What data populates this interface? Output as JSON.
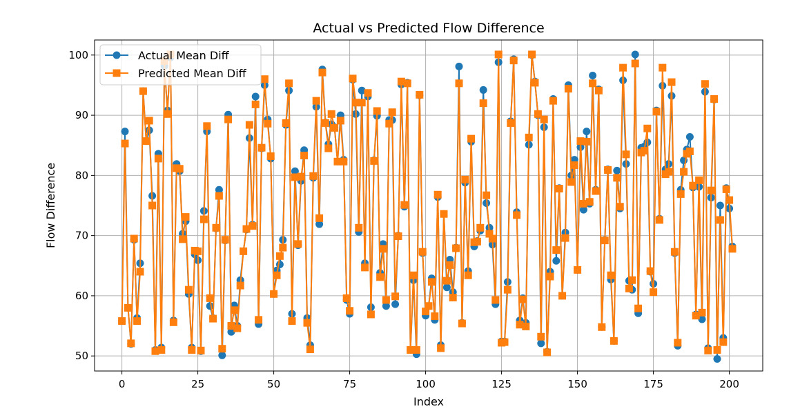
{
  "chart_data": {
    "type": "line",
    "title": "Actual vs Predicted Flow Difference",
    "xlabel": "Index",
    "ylabel": "Flow Difference",
    "xlim": [
      -9,
      211
    ],
    "ylim": [
      47.5,
      102.5
    ],
    "xticks": [
      0,
      25,
      50,
      75,
      100,
      125,
      150,
      175,
      200
    ],
    "yticks": [
      50,
      60,
      70,
      80,
      90,
      100
    ],
    "grid": true,
    "legend_position": "top-left",
    "series": [
      {
        "name": "Actual Mean Diff",
        "color": "#1f77b4",
        "marker": "circle",
        "values": [
          55.8,
          87.3,
          58.0,
          52.0,
          69.3,
          56.3,
          65.4,
          94.0,
          85.7,
          87.5,
          76.6,
          51.0,
          83.6,
          51.4,
          98.2,
          90.8,
          99.6,
          55.9,
          81.9,
          80.7,
          70.3,
          72.4,
          60.3,
          51.4,
          66.9,
          65.9,
          50.8,
          74.1,
          87.3,
          58.3,
          56.3,
          71.2,
          77.6,
          50.1,
          69.2,
          90.1,
          54.0,
          58.4,
          55.0,
          62.6,
          67.4,
          71.0,
          86.2,
          71.8,
          93.1,
          55.3,
          84.5,
          95.0,
          89.3,
          82.8,
          60.3,
          64.2,
          65.2,
          69.3,
          88.4,
          94.1,
          57.0,
          80.7,
          68.4,
          79.1,
          84.2,
          56.3,
          51.8,
          79.6,
          91.4,
          71.9,
          97.6,
          88.8,
          85.2,
          88.5,
          88.0,
          82.3,
          90.0,
          82.6,
          59.3,
          57.0,
          95.9,
          90.2,
          70.6,
          94.1,
          65.4,
          93.1,
          58.1,
          82.5,
          89.9,
          63.8,
          68.6,
          58.3,
          89.2,
          89.2,
          58.6,
          70.0,
          95.1,
          74.8,
          95.4,
          51.0,
          62.6,
          50.3,
          93.3,
          67.1,
          56.7,
          58.3,
          62.9,
          56.0,
          76.4,
          51.8,
          73.6,
          61.4,
          66.0,
          60.6,
          68.0,
          98.1,
          55.5,
          78.8,
          64.1,
          85.6,
          68.2,
          69.1,
          70.8,
          94.2,
          75.4,
          71.3,
          68.5,
          58.6,
          98.8,
          52.4,
          52.4,
          62.3,
          89.0,
          99.3,
          73.9,
          55.9,
          59.6,
          55.5,
          85.1,
          100.0,
          95.6,
          90.0,
          52.1,
          88.0,
          50.7,
          64.0,
          92.7,
          65.8,
          77.9,
          60.0,
          70.5,
          95.0,
          80.0,
          82.6,
          64.3,
          84.7,
          74.3,
          87.3,
          75.3,
          96.6,
          77.6,
          94.3,
          54.8,
          69.3,
          81.0,
          62.7,
          52.5,
          80.8,
          74.5,
          95.8,
          81.9,
          62.5,
          61.0,
          100.1,
          57.1,
          84.6,
          84.8,
          85.5,
          64.0,
          62.0,
          90.8,
          72.8,
          94.9,
          81.0,
          81.9,
          93.2,
          67.1,
          51.7,
          77.6,
          82.5,
          84.3,
          86.4,
          78.0,
          56.9,
          78.1,
          56.1,
          93.9,
          51.3,
          76.3,
          92.6,
          49.5,
          75.0,
          53.0,
          77.9,
          74.5,
          68.2
        ]
      },
      {
        "name": "Predicted Mean Diff",
        "color": "#ff7f0e",
        "marker": "square",
        "values": [
          55.8,
          85.3,
          58.0,
          52.1,
          69.5,
          55.8,
          64.0,
          94.0,
          85.7,
          89.1,
          75.0,
          50.8,
          82.8,
          51.0,
          99.0,
          90.2,
          100.1,
          55.6,
          81.2,
          81.1,
          69.4,
          73.1,
          61.0,
          51.0,
          67.5,
          67.4,
          50.9,
          72.7,
          88.2,
          59.6,
          56.2,
          71.3,
          76.6,
          51.2,
          69.3,
          89.3,
          55.0,
          57.6,
          54.6,
          61.7,
          67.4,
          71.1,
          88.4,
          71.6,
          91.8,
          56.0,
          84.6,
          96.0,
          88.6,
          83.2,
          60.3,
          63.4,
          66.6,
          68.0,
          88.7,
          95.3,
          55.8,
          79.7,
          68.6,
          79.8,
          83.3,
          55.5,
          51.1,
          79.9,
          92.4,
          72.9,
          97.1,
          88.7,
          84.5,
          90.2,
          87.9,
          82.3,
          89.1,
          82.3,
          59.6,
          57.5,
          96.1,
          92.1,
          71.3,
          92.1,
          64.7,
          93.7,
          56.9,
          82.4,
          90.7,
          63.1,
          67.8,
          59.3,
          88.6,
          90.5,
          59.9,
          69.9,
          95.6,
          75.1,
          95.3,
          51.0,
          63.4,
          51.0,
          93.4,
          67.3,
          57.4,
          58.3,
          62.3,
          56.6,
          76.8,
          51.3,
          73.6,
          62.5,
          65.1,
          59.7,
          67.9,
          95.3,
          55.4,
          79.3,
          63.4,
          86.1,
          68.9,
          69.0,
          71.3,
          92.0,
          76.7,
          70.3,
          69.5,
          59.3,
          100.1,
          52.2,
          52.3,
          61.0,
          88.7,
          99.1,
          73.4,
          55.2,
          59.4,
          54.9,
          86.3,
          100.1,
          95.4,
          90.2,
          53.2,
          89.3,
          50.6,
          63.2,
          92.4,
          67.6,
          77.8,
          60.0,
          69.6,
          94.4,
          78.9,
          81.7,
          64.3,
          85.7,
          75.3,
          85.6,
          75.6,
          95.3,
          77.4,
          94.1,
          54.8,
          69.2,
          80.9,
          63.4,
          52.5,
          79.6,
          74.8,
          97.9,
          83.5,
          61.2,
          62.6,
          98.6,
          57.9,
          83.8,
          84.1,
          87.8,
          64.1,
          60.6,
          90.6,
          72.6,
          97.9,
          80.2,
          80.6,
          95.5,
          67.3,
          52.2,
          76.9,
          80.6,
          83.6,
          84.0,
          78.3,
          56.7,
          79.2,
          57.2,
          95.2,
          50.9,
          77.5,
          92.7,
          51.0,
          72.6,
          52.3,
          77.7,
          75.9,
          67.8
        ]
      }
    ]
  }
}
